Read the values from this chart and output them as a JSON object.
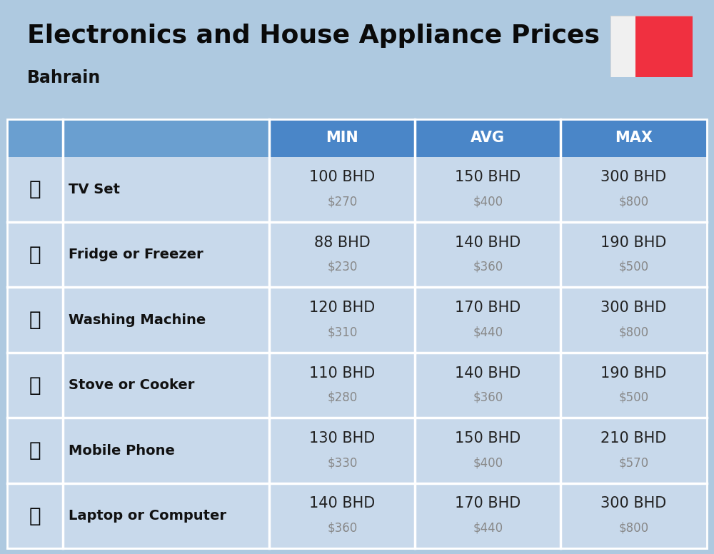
{
  "title": "Electronics and House Appliance Prices",
  "subtitle": "Bahrain",
  "background_color": "#aec9e0",
  "header_col_color": "#4a86c8",
  "header_icon_col_color": "#6a9fd0",
  "header_text_color": "#ffffff",
  "row_bg_light": "#c8d9eb",
  "row_bg_dark": "#b8ccde",
  "divider_color": "#ffffff",
  "item_name_color": "#111111",
  "bhd_color": "#222222",
  "usd_color": "#888888",
  "col_divider_color": "#aabcce",
  "headers": [
    "MIN",
    "AVG",
    "MAX"
  ],
  "items": [
    {
      "name": "TV Set",
      "min_bhd": "100 BHD",
      "min_usd": "$270",
      "avg_bhd": "150 BHD",
      "avg_usd": "$400",
      "max_bhd": "300 BHD",
      "max_usd": "$800"
    },
    {
      "name": "Fridge or Freezer",
      "min_bhd": "88 BHD",
      "min_usd": "$230",
      "avg_bhd": "140 BHD",
      "avg_usd": "$360",
      "max_bhd": "190 BHD",
      "max_usd": "$500"
    },
    {
      "name": "Washing Machine",
      "min_bhd": "120 BHD",
      "min_usd": "$310",
      "avg_bhd": "170 BHD",
      "avg_usd": "$440",
      "max_bhd": "300 BHD",
      "max_usd": "$800"
    },
    {
      "name": "Stove or Cooker",
      "min_bhd": "110 BHD",
      "min_usd": "$280",
      "avg_bhd": "140 BHD",
      "avg_usd": "$360",
      "max_bhd": "190 BHD",
      "max_usd": "$500"
    },
    {
      "name": "Mobile Phone",
      "min_bhd": "130 BHD",
      "min_usd": "$330",
      "avg_bhd": "150 BHD",
      "avg_usd": "$400",
      "max_bhd": "210 BHD",
      "max_usd": "$570"
    },
    {
      "name": "Laptop or Computer",
      "min_bhd": "140 BHD",
      "min_usd": "$360",
      "avg_bhd": "170 BHD",
      "avg_usd": "$440",
      "max_bhd": "300 BHD",
      "max_usd": "$800"
    }
  ],
  "flag_red": "#f03040",
  "flag_white": "#f0f0f0",
  "title_fontsize": 26,
  "subtitle_fontsize": 17,
  "header_fontsize": 15,
  "name_fontsize": 14,
  "bhd_fontsize": 15,
  "usd_fontsize": 12
}
